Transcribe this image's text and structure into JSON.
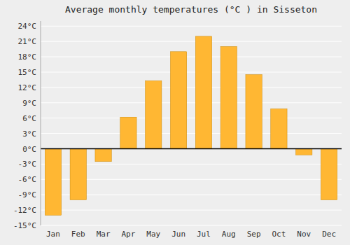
{
  "chart_data": {
    "type": "bar",
    "title": "Average monthly temperatures (°C ) in Sisseton",
    "categories": [
      "Jan",
      "Feb",
      "Mar",
      "Apr",
      "May",
      "Jun",
      "Jul",
      "Aug",
      "Sep",
      "Oct",
      "Nov",
      "Dec"
    ],
    "values": [
      -13,
      -10,
      -2.5,
      6.2,
      13.3,
      19.0,
      22.0,
      20.0,
      14.5,
      7.8,
      -1.2,
      -10.0
    ],
    "color": "#FFB733",
    "ylim": [
      -15,
      25
    ],
    "yticks": [
      {
        "value": -15,
        "label": "-15°C"
      },
      {
        "value": -12,
        "label": "-12°C"
      },
      {
        "value": -9,
        "label": "-9°C"
      },
      {
        "value": -6,
        "label": "-6°C"
      },
      {
        "value": -3,
        "label": "-3°C"
      },
      {
        "value": 0,
        "label": "0°C"
      },
      {
        "value": 3,
        "label": "3°C"
      },
      {
        "value": 6,
        "label": "6°C"
      },
      {
        "value": 9,
        "label": "9°C"
      },
      {
        "value": 12,
        "label": "12°C"
      },
      {
        "value": 15,
        "label": "15°C"
      },
      {
        "value": 18,
        "label": "18°C"
      },
      {
        "value": 21,
        "label": "21°C"
      },
      {
        "value": 24,
        "label": "24°C"
      }
    ],
    "grid": true
  }
}
